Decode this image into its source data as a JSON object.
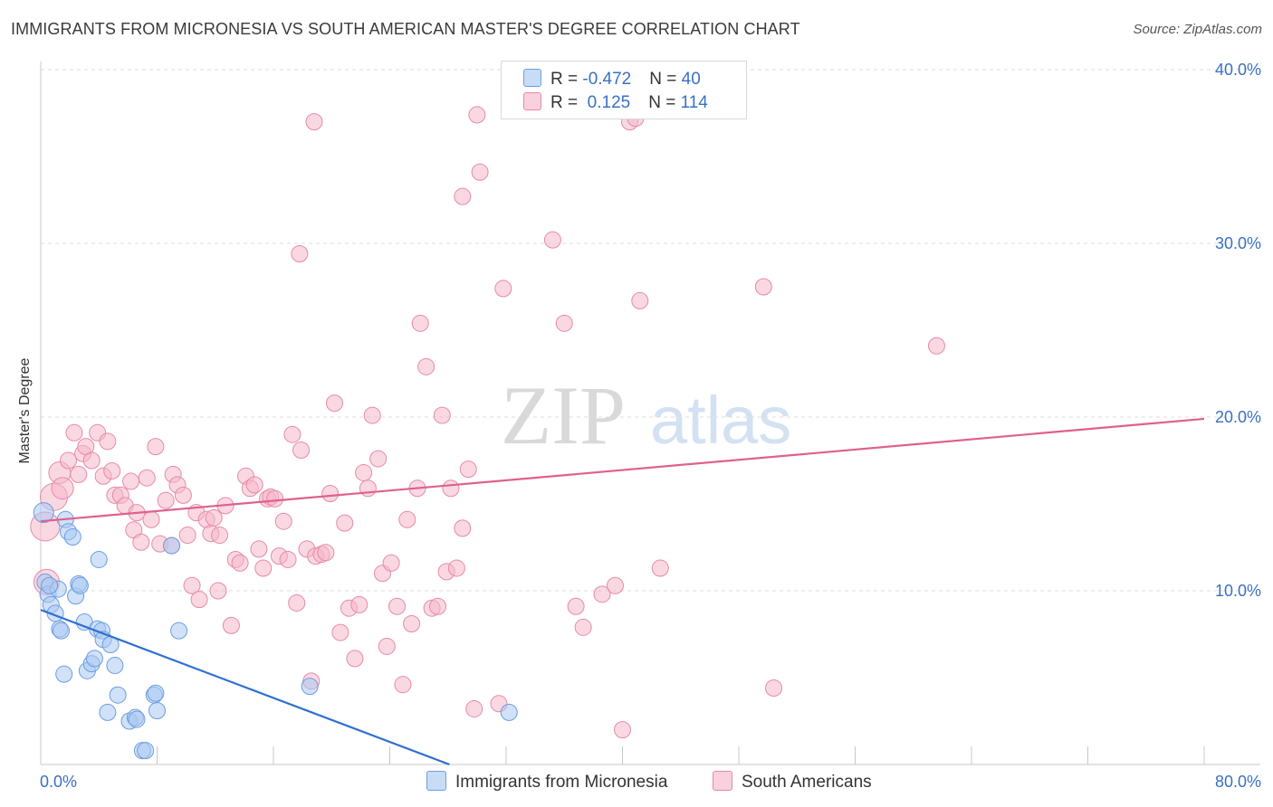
{
  "title": "IMMIGRANTS FROM MICRONESIA VS SOUTH AMERICAN MASTER'S DEGREE CORRELATION CHART",
  "source": "Source: ZipAtlas.com",
  "watermark": {
    "zip": "ZIP",
    "atlas": "atlas"
  },
  "colors": {
    "blue_fill": "#a9c8f2",
    "blue_stroke": "#6b9ee0",
    "blue_line": "#2f6fd0",
    "pink_fill": "#f5b8cb",
    "pink_stroke": "#e58aa8",
    "pink_line": "#e0608e",
    "grid": "#dcdcdc",
    "tick_label": "#3a70c4"
  },
  "legend_top": [
    {
      "r_label": "R = ",
      "r_value": "-0.472",
      "n_label": "N = ",
      "n_value": "40",
      "color": "#a9c8f2",
      "border": "#6b9ee0"
    },
    {
      "r_label": "R = ",
      "r_value": " 0.125",
      "n_label": "N = ",
      "n_value": "114",
      "color": "#f5b8cb",
      "border": "#e58aa8"
    }
  ],
  "chart_data": {
    "type": "scatter",
    "title": "IMMIGRANTS FROM MICRONESIA VS SOUTH AMERICAN MASTER'S DEGREE CORRELATION CHART",
    "xlabel": "",
    "ylabel": "Master's Degree",
    "xlim": [
      0,
      80
    ],
    "ylim": [
      0,
      40
    ],
    "x_tick_labels": [
      "0.0%",
      "80.0%"
    ],
    "y_ticks": [
      10,
      20,
      30,
      40
    ],
    "y_tick_labels": [
      "10.0%",
      "20.0%",
      "30.0%",
      "40.0%"
    ],
    "grid": true,
    "legend_position": "bottom",
    "series": [
      {
        "name": "Immigrants from Micronesia",
        "color": "#a9c8f2",
        "trend": [
          [
            0,
            8.9
          ],
          [
            28.1,
            0
          ]
        ],
        "points": [
          [
            0.2,
            14.5
          ],
          [
            0.3,
            10.5
          ],
          [
            0.5,
            9.8
          ],
          [
            0.7,
            9.2
          ],
          [
            1.0,
            8.7
          ],
          [
            1.2,
            10.1
          ],
          [
            1.3,
            7.8
          ],
          [
            1.4,
            7.7
          ],
          [
            1.6,
            5.2
          ],
          [
            1.7,
            14.1
          ],
          [
            1.9,
            13.4
          ],
          [
            2.2,
            13.1
          ],
          [
            2.4,
            9.7
          ],
          [
            2.6,
            10.4
          ],
          [
            2.7,
            10.3
          ],
          [
            3.0,
            8.2
          ],
          [
            3.2,
            5.4
          ],
          [
            3.5,
            5.8
          ],
          [
            3.7,
            6.1
          ],
          [
            3.9,
            7.8
          ],
          [
            4.0,
            11.8
          ],
          [
            4.2,
            7.7
          ],
          [
            4.3,
            7.2
          ],
          [
            4.8,
            6.9
          ],
          [
            5.1,
            5.7
          ],
          [
            5.3,
            4.0
          ],
          [
            4.6,
            3.0
          ],
          [
            6.1,
            2.5
          ],
          [
            6.5,
            2.7
          ],
          [
            6.6,
            2.6
          ],
          [
            7.0,
            0.8
          ],
          [
            7.2,
            0.8
          ],
          [
            7.8,
            4.0
          ],
          [
            7.9,
            4.1
          ],
          [
            8.0,
            3.1
          ],
          [
            9.0,
            12.6
          ],
          [
            9.5,
            7.7
          ],
          [
            18.5,
            4.5
          ],
          [
            32.2,
            3.0
          ],
          [
            0.6,
            10.3
          ]
        ]
      },
      {
        "name": "South Americans",
        "color": "#f5b8cb",
        "trend": [
          [
            0,
            14.0
          ],
          [
            80,
            19.9
          ]
        ],
        "points": [
          [
            0.3,
            13.7
          ],
          [
            0.4,
            10.5
          ],
          [
            0.9,
            15.4
          ],
          [
            1.3,
            16.8
          ],
          [
            1.5,
            15.9
          ],
          [
            1.9,
            17.5
          ],
          [
            2.3,
            19.1
          ],
          [
            2.6,
            16.7
          ],
          [
            2.9,
            17.9
          ],
          [
            3.1,
            18.3
          ],
          [
            3.5,
            17.5
          ],
          [
            3.9,
            19.1
          ],
          [
            4.3,
            16.6
          ],
          [
            4.6,
            18.6
          ],
          [
            4.9,
            16.9
          ],
          [
            5.1,
            15.5
          ],
          [
            5.5,
            15.5
          ],
          [
            5.8,
            14.9
          ],
          [
            6.2,
            16.3
          ],
          [
            6.4,
            13.5
          ],
          [
            6.6,
            14.5
          ],
          [
            6.9,
            12.8
          ],
          [
            7.3,
            16.5
          ],
          [
            7.6,
            14.1
          ],
          [
            7.9,
            18.3
          ],
          [
            8.2,
            12.7
          ],
          [
            8.6,
            15.2
          ],
          [
            9.0,
            12.6
          ],
          [
            9.1,
            16.7
          ],
          [
            9.4,
            16.1
          ],
          [
            9.8,
            15.5
          ],
          [
            10.1,
            13.2
          ],
          [
            10.4,
            10.3
          ],
          [
            10.7,
            14.5
          ],
          [
            10.9,
            9.5
          ],
          [
            11.4,
            14.1
          ],
          [
            11.7,
            13.3
          ],
          [
            11.9,
            14.2
          ],
          [
            12.2,
            10.0
          ],
          [
            12.3,
            13.2
          ],
          [
            12.7,
            14.9
          ],
          [
            13.1,
            8.0
          ],
          [
            13.4,
            11.8
          ],
          [
            13.7,
            11.6
          ],
          [
            14.1,
            16.6
          ],
          [
            14.4,
            15.9
          ],
          [
            14.7,
            16.1
          ],
          [
            15.0,
            12.4
          ],
          [
            15.3,
            11.3
          ],
          [
            15.6,
            15.3
          ],
          [
            15.8,
            15.4
          ],
          [
            16.1,
            15.3
          ],
          [
            16.4,
            12.0
          ],
          [
            16.7,
            14.0
          ],
          [
            17.0,
            11.8
          ],
          [
            17.3,
            19.0
          ],
          [
            17.6,
            9.3
          ],
          [
            17.9,
            18.1
          ],
          [
            18.3,
            12.4
          ],
          [
            18.6,
            4.8
          ],
          [
            18.9,
            12.0
          ],
          [
            19.3,
            12.1
          ],
          [
            19.6,
            12.2
          ],
          [
            19.9,
            15.6
          ],
          [
            20.2,
            20.8
          ],
          [
            20.6,
            7.6
          ],
          [
            20.9,
            13.9
          ],
          [
            21.2,
            9.0
          ],
          [
            21.6,
            6.1
          ],
          [
            21.9,
            9.2
          ],
          [
            22.2,
            16.8
          ],
          [
            22.5,
            15.9
          ],
          [
            22.8,
            20.1
          ],
          [
            23.2,
            17.6
          ],
          [
            23.5,
            11.0
          ],
          [
            23.8,
            6.8
          ],
          [
            24.1,
            11.6
          ],
          [
            24.5,
            9.1
          ],
          [
            24.9,
            4.6
          ],
          [
            25.2,
            14.1
          ],
          [
            25.5,
            8.1
          ],
          [
            25.9,
            15.9
          ],
          [
            26.1,
            25.4
          ],
          [
            26.5,
            22.9
          ],
          [
            26.9,
            9.0
          ],
          [
            27.3,
            9.1
          ],
          [
            27.6,
            20.1
          ],
          [
            27.9,
            11.1
          ],
          [
            28.2,
            15.9
          ],
          [
            28.6,
            11.3
          ],
          [
            29.0,
            13.6
          ],
          [
            29.4,
            17.0
          ],
          [
            29.8,
            3.2
          ],
          [
            30.2,
            34.1
          ],
          [
            31.5,
            3.5
          ],
          [
            31.8,
            27.4
          ],
          [
            17.8,
            29.4
          ],
          [
            18.8,
            37.0
          ],
          [
            29.0,
            32.7
          ],
          [
            30.0,
            37.4
          ],
          [
            35.2,
            30.2
          ],
          [
            36.0,
            25.4
          ],
          [
            36.8,
            9.1
          ],
          [
            37.3,
            7.9
          ],
          [
            38.6,
            9.8
          ],
          [
            39.5,
            10.3
          ],
          [
            40.0,
            2.0
          ],
          [
            40.5,
            37.0
          ],
          [
            40.9,
            37.2
          ],
          [
            41.2,
            26.7
          ],
          [
            42.6,
            11.3
          ],
          [
            49.7,
            27.5
          ],
          [
            50.4,
            4.4
          ],
          [
            61.6,
            24.1
          ]
        ]
      }
    ]
  }
}
